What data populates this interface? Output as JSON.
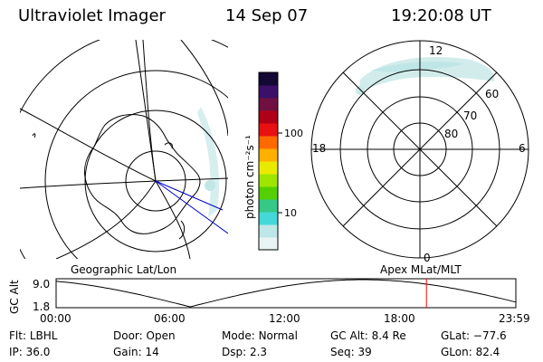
{
  "header": {
    "instrument": "Ultraviolet Imager",
    "date": "14 Sep 07",
    "time": "19:20:08 UT"
  },
  "panels": {
    "left_label": "Geographic Lat/Lon",
    "right_label": "Apex MLat/MLT",
    "mlt_labels": [
      "12",
      "18",
      "6",
      "0"
    ],
    "mlat_labels": [
      "60",
      "70",
      "80"
    ]
  },
  "colorbar": {
    "unit_label": "photon cm⁻²s⁻¹",
    "ticks": [
      "100",
      "10"
    ],
    "scale": "log",
    "colors": [
      "#e8f4f4",
      "#bde6e6",
      "#45d8d8",
      "#36c886",
      "#54d000",
      "#9ee600",
      "#eaea00",
      "#ffb000",
      "#ff6a00",
      "#e81010",
      "#b00018",
      "#701040",
      "#3c1068",
      "#140834"
    ]
  },
  "timeline": {
    "ylabel": "GC Alt",
    "y_ticks": [
      "9.0",
      "1.8"
    ],
    "x_ticks": [
      "00:00",
      "06:00",
      "12:00",
      "18:00",
      "23:59"
    ],
    "x_range_hours": [
      0,
      24
    ],
    "y_range": [
      1.8,
      9.0
    ],
    "current_time_hours": 19.33,
    "cursor_color": "#ff0000"
  },
  "info": {
    "row1": [
      {
        "label": "Flt:",
        "value": "LBHL"
      },
      {
        "label": "Door:",
        "value": "Open"
      },
      {
        "label": "Mode:",
        "value": "Normal"
      },
      {
        "label": "GC Alt:",
        "value": "8.4 Re"
      },
      {
        "label": "GLat:",
        "value": "−77.6"
      }
    ],
    "row2": [
      {
        "label": "IP:",
        "value": "36.0"
      },
      {
        "label": "Gain:",
        "value": "14"
      },
      {
        "label": "Dsp:",
        "value": "2.3"
      },
      {
        "label": "Seq:",
        "value": "39"
      },
      {
        "label": "GLon:",
        "value": "82.4"
      }
    ]
  }
}
